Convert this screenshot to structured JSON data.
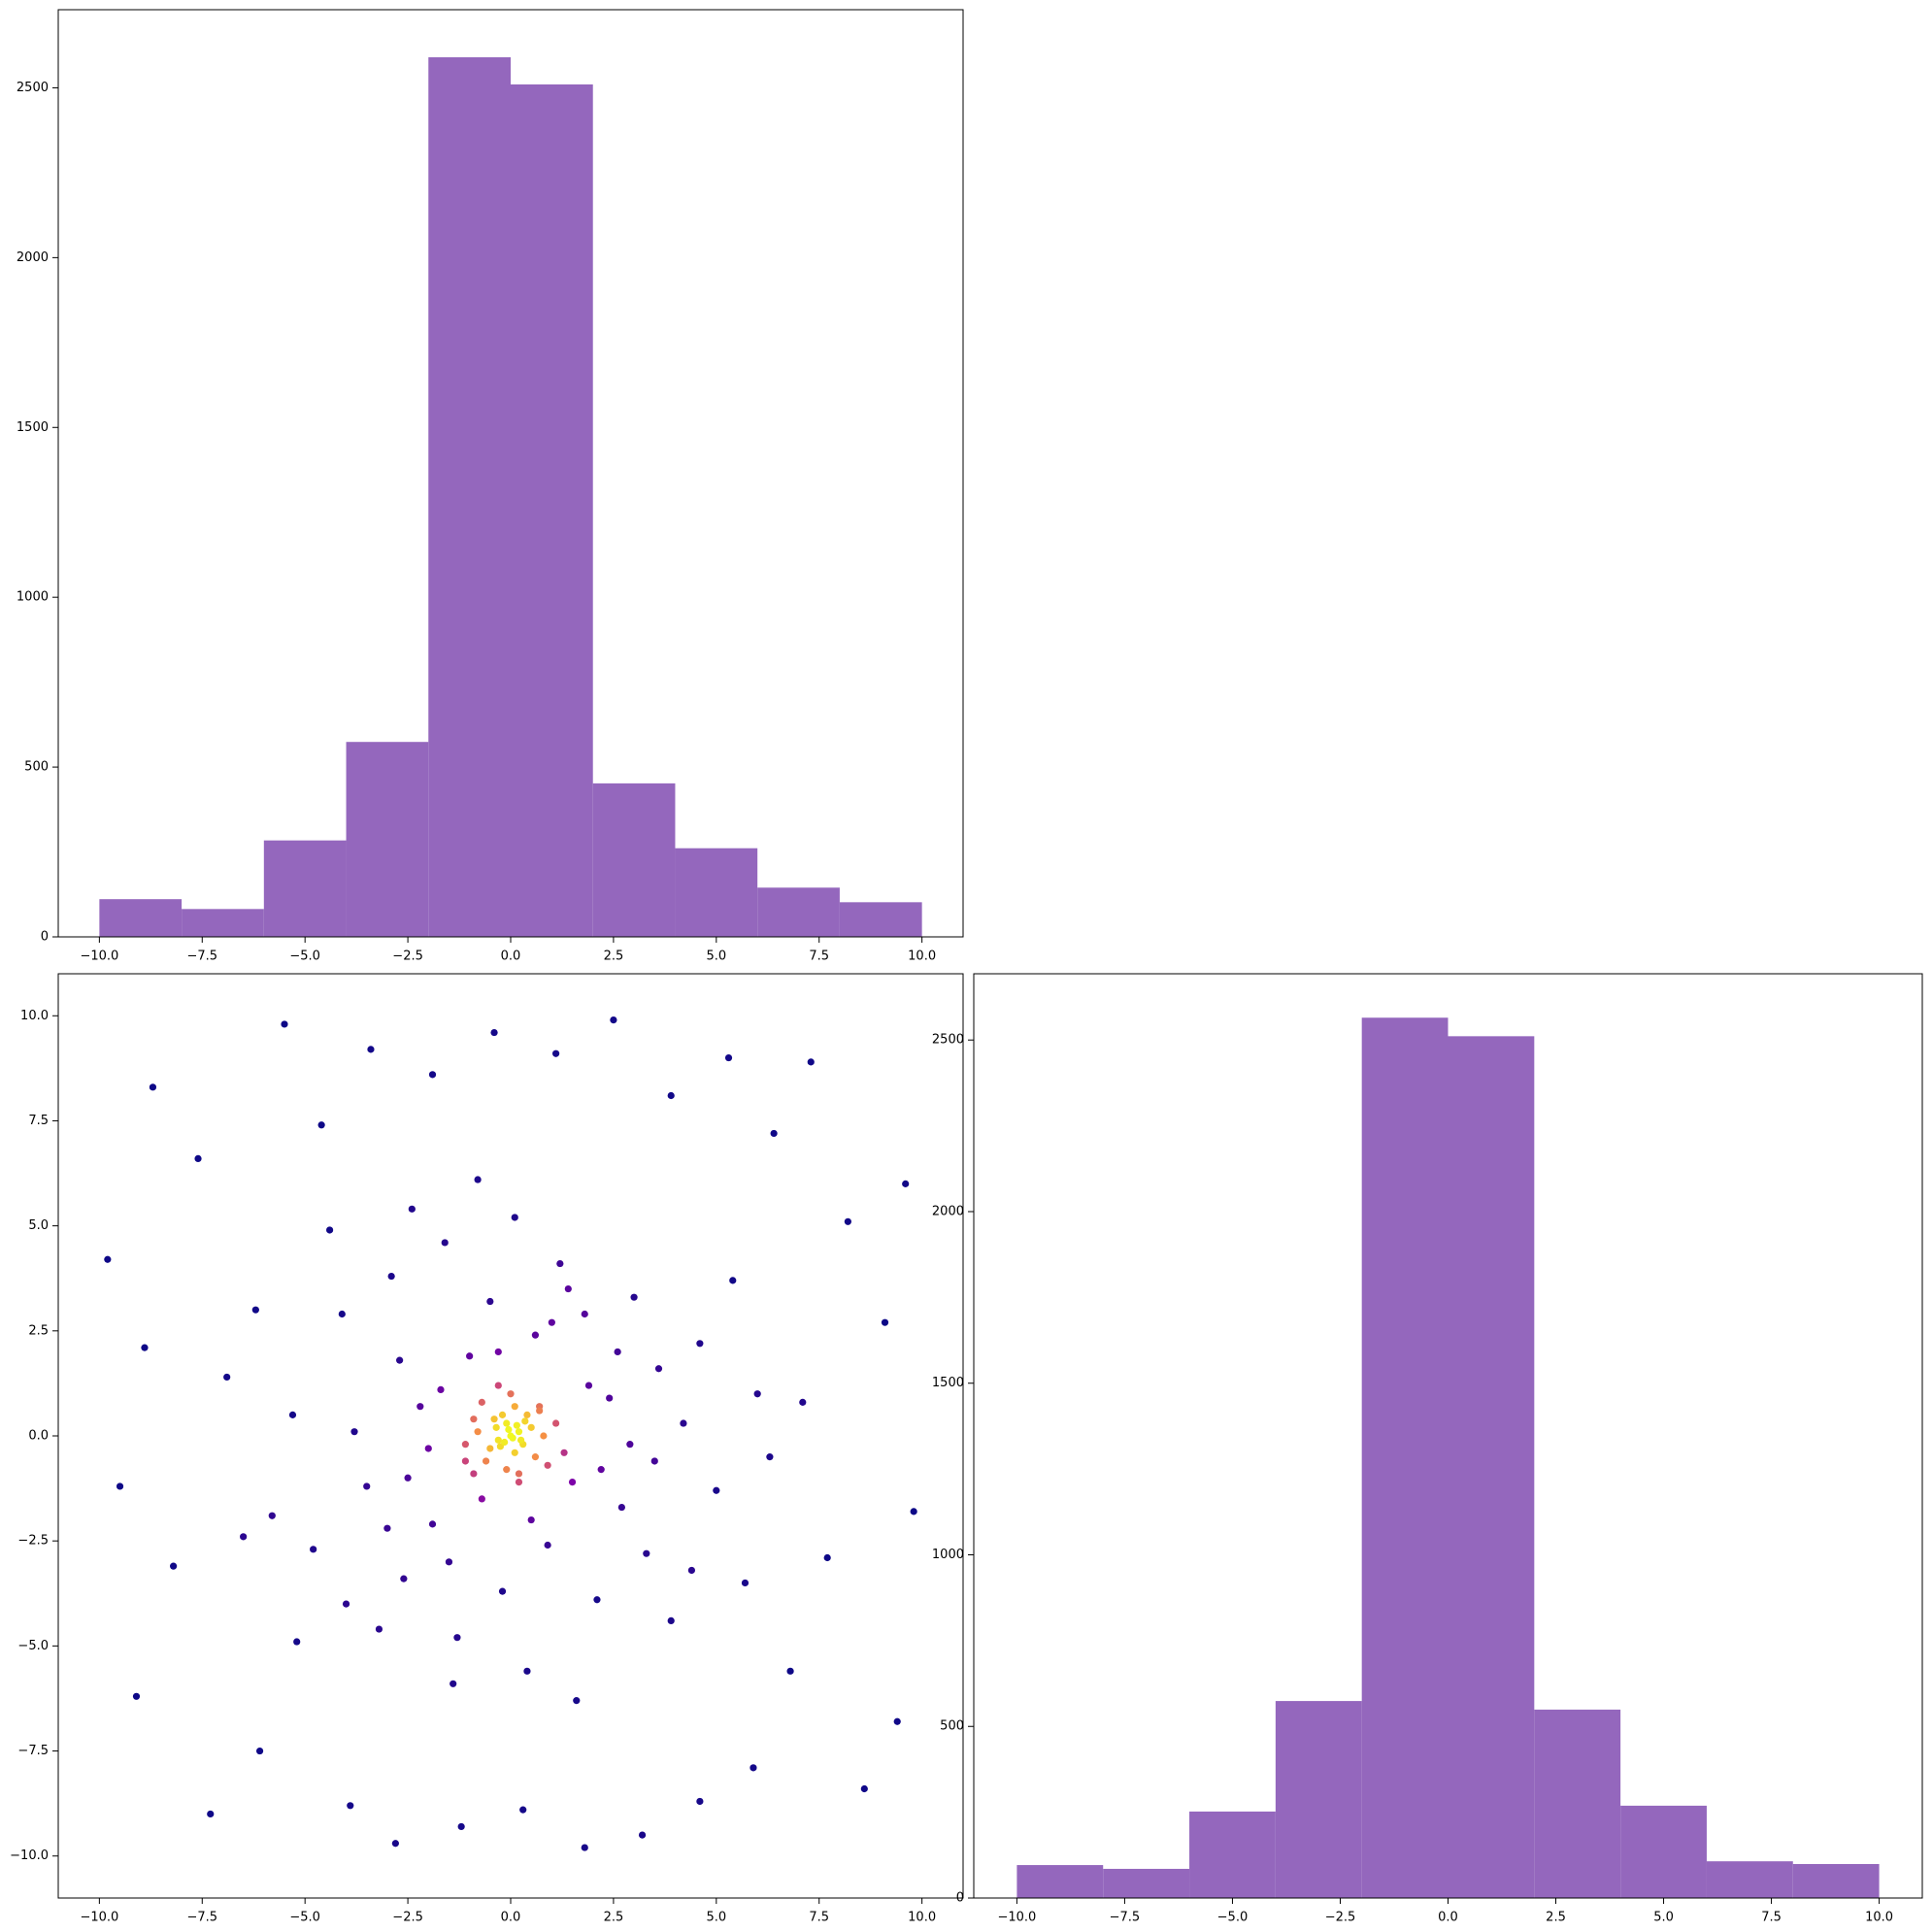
{
  "chart_data": [
    {
      "type": "histogram",
      "color": "#9467bd",
      "bins": [
        -10,
        -8,
        -6,
        -4,
        -2,
        0,
        2,
        4,
        6,
        8,
        10
      ],
      "values": [
        111,
        82,
        284,
        574,
        2590,
        2510,
        452,
        261,
        145,
        102
      ],
      "xlim": [
        -11,
        11
      ],
      "ylim": [
        0,
        2730
      ],
      "xticks": [
        {
          "value": -10,
          "label": "−10.0"
        },
        {
          "value": -7.5,
          "label": "−7.5"
        },
        {
          "value": -5,
          "label": "−5.0"
        },
        {
          "value": -2.5,
          "label": "−2.5"
        },
        {
          "value": 0,
          "label": "0.0"
        },
        {
          "value": 2.5,
          "label": "2.5"
        },
        {
          "value": 5,
          "label": "5.0"
        },
        {
          "value": 7.5,
          "label": "7.5"
        },
        {
          "value": 10,
          "label": "10.0"
        }
      ],
      "yticks": [
        0,
        500,
        1000,
        1500,
        2000,
        2500
      ]
    },
    {
      "type": "scatter",
      "colormap": "plasma",
      "x": [
        -9.8,
        -9.1,
        -8.7,
        -8.2,
        -7.6,
        -7.3,
        -6.9,
        -6.1,
        -5.5,
        -5.2,
        -4.6,
        -3.9,
        -3.4,
        -2.8,
        -1.9,
        -1.2,
        -0.4,
        0.3,
        1.1,
        1.8,
        2.5,
        3.2,
        3.9,
        4.6,
        5.3,
        5.9,
        6.4,
        6.8,
        7.3,
        7.7,
        8.2,
        8.6,
        9.1,
        9.4,
        9.8,
        -9.5,
        -8.9,
        9.6,
        -6.5,
        7.1,
        -4.1,
        -3.5,
        -2.9,
        -2.6,
        -2.2,
        -1.9,
        -1.6,
        -1.3,
        -1.0,
        -0.7,
        -0.5,
        -0.2,
        0.1,
        0.4,
        0.6,
        0.9,
        1.2,
        1.5,
        1.8,
        2.1,
        2.4,
        2.7,
        3.0,
        3.3,
        3.6,
        3.9,
        4.2,
        4.6,
        5.0,
        5.4,
        -5.3,
        -4.8,
        -4.4,
        -3.8,
        -3.2,
        -2.4,
        -2.0,
        -1.4,
        -0.9,
        0.2,
        0.7,
        1.3,
        1.9,
        2.2,
        -1.7,
        -1.1,
        -0.3,
        0.5,
        1.0,
        2.9,
        -2.7,
        -3.0,
        3.5,
        4.4,
        -4.0,
        -5.8,
        6.0,
        5.7,
        -0.8,
        1.6,
        -6.2,
        6.3,
        -1.5,
        1.4,
        -2.5,
        2.6,
        0.0,
        0.2,
        -0.1,
        0.3,
        -0.3,
        0.1,
        -0.2,
        0.5,
        -0.5,
        0.4,
        -0.4,
        0.6,
        -0.6,
        0.1,
        -0.1,
        0.8,
        -0.8,
        0.7,
        -0.7,
        0.9,
        -0.9,
        0.0,
        0.05,
        -0.05,
        0.15,
        -0.25,
        0.25,
        -0.15,
        0.35,
        -0.35,
        1.1,
        -1.1,
        0.2,
        -0.3
      ],
      "y": [
        4.2,
        -6.2,
        8.3,
        -3.1,
        6.6,
        -9.0,
        1.4,
        -7.5,
        9.8,
        -4.9,
        7.4,
        -8.8,
        9.2,
        -9.7,
        8.6,
        -9.3,
        9.6,
        -8.9,
        9.1,
        -9.8,
        9.9,
        -9.5,
        8.1,
        -8.7,
        9.0,
        -7.9,
        7.2,
        -5.6,
        8.9,
        -2.9,
        5.1,
        -8.4,
        2.7,
        -6.8,
        -1.8,
        -1.2,
        2.1,
        6.0,
        -2.4,
        0.8,
        2.9,
        -1.2,
        3.8,
        -3.4,
        0.7,
        -2.1,
        4.6,
        -4.8,
        1.9,
        -1.5,
        3.2,
        -3.7,
        5.2,
        -5.6,
        2.4,
        -2.6,
        4.1,
        -1.1,
        2.9,
        -3.9,
        0.9,
        -1.7,
        3.3,
        -2.8,
        1.6,
        -4.4,
        0.3,
        2.2,
        -1.3,
        3.7,
        0.5,
        -2.7,
        4.9,
        0.1,
        -4.6,
        5.4,
        -0.3,
        -5.9,
        0.4,
        -0.9,
        0.6,
        -0.4,
        1.2,
        -0.8,
        1.1,
        -0.6,
        2.0,
        -2.0,
        2.7,
        -0.2,
        1.8,
        -2.2,
        -0.6,
        -3.2,
        -4.0,
        -1.9,
        1.0,
        -3.5,
        6.1,
        -6.3,
        3.0,
        -0.5,
        -3.0,
        3.5,
        -1.0,
        2.0,
        0.0,
        0.1,
        0.3,
        -0.2,
        -0.1,
        -0.4,
        0.5,
        0.2,
        -0.3,
        0.5,
        0.4,
        -0.5,
        -0.6,
        0.7,
        -0.8,
        0.0,
        0.1,
        0.7,
        0.8,
        -0.7,
        -0.9,
        1.0,
        -0.05,
        0.15,
        0.25,
        -0.25,
        -0.1,
        -0.15,
        0.35,
        0.2,
        0.3,
        -0.2,
        -1.1,
        1.2
      ],
      "xlim": [
        -11,
        11
      ],
      "ylim": [
        -11,
        11
      ],
      "xticks": [
        {
          "value": -10,
          "label": "−10.0"
        },
        {
          "value": -7.5,
          "label": "−7.5"
        },
        {
          "value": -5,
          "label": "−5.0"
        },
        {
          "value": -2.5,
          "label": "−2.5"
        },
        {
          "value": 0,
          "label": "0.0"
        },
        {
          "value": 2.5,
          "label": "2.5"
        },
        {
          "value": 5,
          "label": "5.0"
        },
        {
          "value": 7.5,
          "label": "7.5"
        },
        {
          "value": 10,
          "label": "10.0"
        }
      ],
      "yticks": [
        {
          "value": -10,
          "label": "−10.0"
        },
        {
          "value": -7.5,
          "label": "−7.5"
        },
        {
          "value": -5,
          "label": "−5.0"
        },
        {
          "value": -2.5,
          "label": "−2.5"
        },
        {
          "value": 0,
          "label": "0.0"
        },
        {
          "value": 2.5,
          "label": "2.5"
        },
        {
          "value": 5,
          "label": "5.0"
        },
        {
          "value": 7.5,
          "label": "7.5"
        },
        {
          "value": 10,
          "label": "10.0"
        }
      ]
    },
    {
      "type": "histogram",
      "color": "#9467bd",
      "bins": [
        -10,
        -8,
        -6,
        -4,
        -2,
        0,
        2,
        4,
        6,
        8,
        10
      ],
      "values": [
        96,
        85,
        252,
        574,
        2565,
        2511,
        549,
        269,
        107,
        99
      ],
      "xlim": [
        -11,
        11
      ],
      "ylim": [
        0,
        2693
      ],
      "xticks": [
        {
          "value": -10,
          "label": "−10.0"
        },
        {
          "value": -7.5,
          "label": "−7.5"
        },
        {
          "value": -5,
          "label": "−5.0"
        },
        {
          "value": -2.5,
          "label": "−2.5"
        },
        {
          "value": 0,
          "label": "0.0"
        },
        {
          "value": 2.5,
          "label": "2.5"
        },
        {
          "value": 5,
          "label": "5.0"
        },
        {
          "value": 7.5,
          "label": "7.5"
        },
        {
          "value": 10,
          "label": "10.0"
        }
      ],
      "yticks": [
        0,
        500,
        1000,
        1500,
        2000,
        2500
      ]
    }
  ]
}
